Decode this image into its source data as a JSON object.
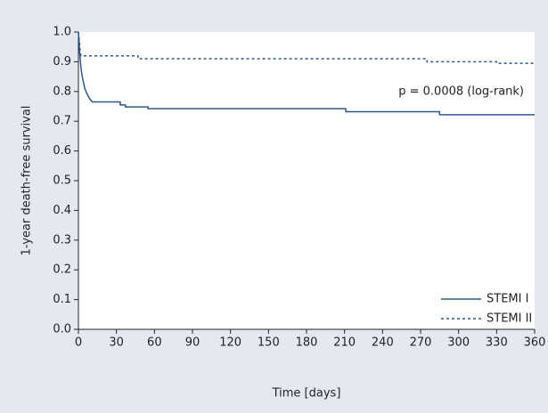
{
  "chart_data": {
    "type": "line",
    "x_label": "Time [days]",
    "y_label": "1-year death-free survival",
    "annotation": "p = 0.0008 (log-rank)",
    "xlim": [
      0,
      360
    ],
    "xticks": [
      0,
      30,
      60,
      90,
      120,
      150,
      180,
      210,
      240,
      270,
      300,
      330,
      360
    ],
    "ylim": [
      0,
      1
    ],
    "yticks": [
      {
        "value": 0,
        "label": "0.0"
      },
      0.1,
      0.2,
      0.3,
      0.4,
      0.5,
      0.6,
      0.7,
      0.8,
      0.9,
      {
        "value": 1,
        "label": "1.0"
      }
    ],
    "grid": false,
    "legend": "lower right",
    "series": [
      {
        "name": "STEMI I",
        "color": "#2c5a8c",
        "dash": "solid",
        "x": [
          0,
          0.5,
          1,
          2,
          3,
          4,
          5,
          7,
          9,
          11,
          33,
          33,
          37,
          37,
          55,
          55,
          211,
          211,
          285,
          285,
          360
        ],
        "values": [
          1,
          0.97,
          0.93,
          0.88,
          0.85,
          0.83,
          0.81,
          0.79,
          0.775,
          0.765,
          0.765,
          0.755,
          0.755,
          0.748,
          0.748,
          0.742,
          0.742,
          0.732,
          0.732,
          0.722,
          0.722
        ]
      },
      {
        "name": "STEMI II",
        "color": "#2c5a8c",
        "dash": "dashed",
        "x": [
          0,
          1,
          1.5,
          2,
          47,
          47,
          275,
          275,
          330,
          330,
          360
        ],
        "values": [
          1,
          0.96,
          0.93,
          0.92,
          0.92,
          0.91,
          0.91,
          0.9,
          0.9,
          0.895,
          0.895
        ]
      }
    ]
  }
}
